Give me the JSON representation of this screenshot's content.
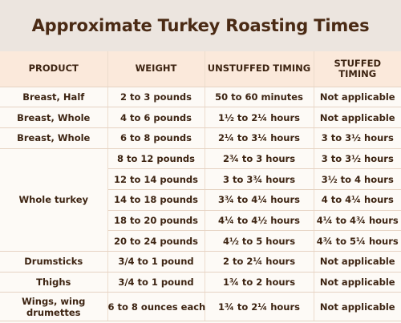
{
  "title": "Approximate Turkey Roasting Times",
  "headers": [
    "PRODUCT",
    "WEIGHT",
    "UNSTUFFED TIMING",
    "STUFFED TIMING"
  ],
  "rows": [
    {
      "product": "Breast, Half",
      "weight": "2 to 3 pounds",
      "unstuffed": "50 to 60 minutes",
      "stuffed": "Not applicable"
    },
    {
      "product": "Breast, Whole",
      "weight": "4 to 6 pounds",
      "unstuffed": "1½ to 2¼ hours",
      "stuffed": "Not applicable"
    },
    {
      "product": "Breast, Whole",
      "weight": "6 to 8 pounds",
      "unstuffed": "2¼ to 3¼ hours",
      "stuffed": "3 to 3½ hours"
    },
    {
      "product": "Whole turkey",
      "weight": "8 to 12 pounds",
      "unstuffed": "2¾ to 3 hours",
      "stuffed": "3 to 3½ hours"
    },
    {
      "product": "",
      "weight": "12 to 14 pounds",
      "unstuffed": "3 to 3¾ hours",
      "stuffed": "3½ to 4 hours"
    },
    {
      "product": "",
      "weight": "14 to 18 pounds",
      "unstuffed": "3¾ to 4¼ hours",
      "stuffed": "4 to 4¼ hours"
    },
    {
      "product": "",
      "weight": "18 to 20 pounds",
      "unstuffed": "4¼ to 4½ hours",
      "stuffed": "4¼ to 4¾ hours"
    },
    {
      "product": "",
      "weight": "20 to 24 pounds",
      "unstuffed": "4½ to 5 hours",
      "stuffed": "4¾ to 5¼ hours"
    },
    {
      "product": "Drumsticks",
      "weight": "3/4 to 1 pound",
      "unstuffed": "2 to 2¼ hours",
      "stuffed": "Not applicable"
    },
    {
      "product": "Thighs",
      "weight": "3/4 to 1 pound",
      "unstuffed": "1¾ to 2 hours",
      "stuffed": "Not applicable"
    },
    {
      "product": "Wings, wing drumettes",
      "weight": "6 to 8 ounces each",
      "unstuffed": "1¾ to 2¼ hours",
      "stuffed": "Not applicable"
    }
  ]
}
